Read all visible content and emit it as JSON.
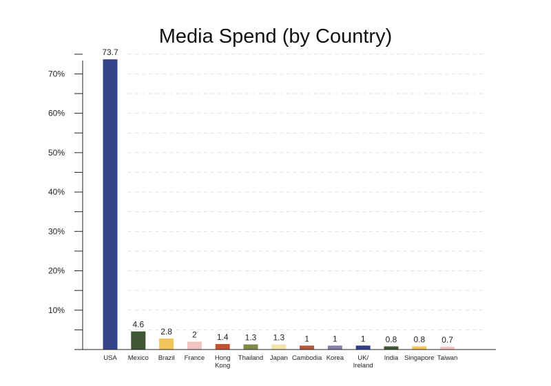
{
  "chart_data": {
    "type": "bar",
    "title": "Media Spend (by Country)",
    "xlabel": "",
    "ylabel": "",
    "ylim": [
      0,
      75
    ],
    "yticks": [
      10,
      20,
      30,
      40,
      50,
      60,
      70
    ],
    "ytick_labels": [
      "10%",
      "20%",
      "30%",
      "40%",
      "50%",
      "60%",
      "70%"
    ],
    "grid": true,
    "categories": [
      [
        "USA"
      ],
      [
        "Mexico"
      ],
      [
        "Brazil"
      ],
      [
        "France"
      ],
      [
        "Hong",
        "Kong"
      ],
      [
        "Thailand"
      ],
      [
        "Japan"
      ],
      [
        "Cambodia"
      ],
      [
        "Korea"
      ],
      [
        "UK/",
        "Ireland"
      ],
      [
        "India"
      ],
      [
        "Singapore"
      ],
      [
        "Taiwan"
      ]
    ],
    "values": [
      73.7,
      4.6,
      2.8,
      2,
      1.4,
      1.3,
      1.3,
      1,
      1,
      1,
      0.8,
      0.8,
      0.7
    ],
    "value_labels": [
      "73.7",
      "4.6",
      "2.8",
      "2",
      "1.4",
      "1.3",
      "1.3",
      "1",
      "1",
      "1",
      "0.8",
      "0.8",
      "0.7"
    ],
    "colors": [
      "#34438a",
      "#3e5632",
      "#f0c55c",
      "#f1c4c4",
      "#c05236",
      "#7c8a4a",
      "#f3e6aa",
      "#b1573c",
      "#8680a8",
      "#2f3f8b",
      "#3e5632",
      "#f0c55c",
      "#f1c4c4"
    ]
  }
}
